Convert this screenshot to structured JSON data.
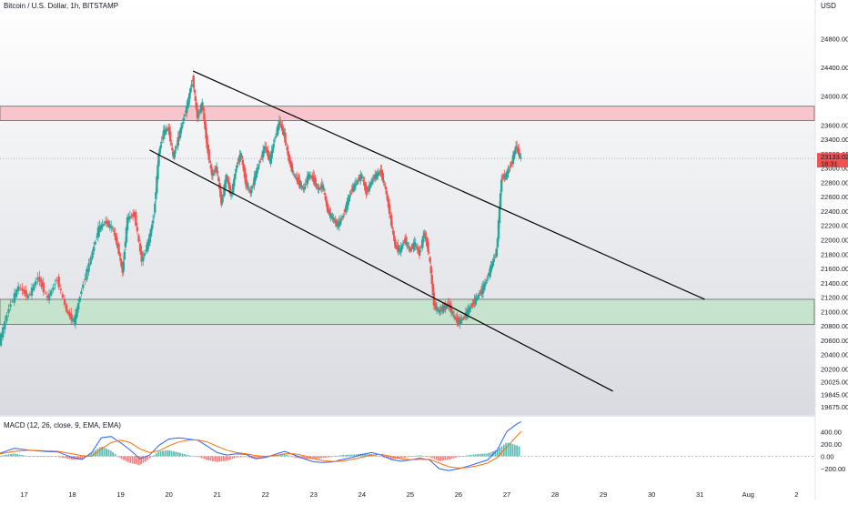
{
  "header": {
    "symbol_label": "Bitcoin / U.S. Dollar, 1h, BITSTAMP",
    "currency_label": "USD"
  },
  "chart_data": {
    "type": "candlestick",
    "title": "Bitcoin / U.S. Dollar, 1h, BITSTAMP",
    "y_axis_label": "USD",
    "ylim": [
      19560,
      25340
    ],
    "price_ticks": [
      "24800.00",
      "24400.00",
      "24000.00",
      "23600.00",
      "23400.00",
      "23200.00",
      "23000.00",
      "22800.00",
      "22600.00",
      "22400.00",
      "22200.00",
      "22000.00",
      "21800.00",
      "21600.00",
      "21400.00",
      "21200.00",
      "21000.00",
      "20800.00",
      "20600.00",
      "20400.00",
      "20200.00",
      "20025.00",
      "19845.00",
      "19675.00"
    ],
    "price_tick_values": [
      24800,
      24400,
      24000,
      23600,
      23400,
      23200,
      23000,
      22800,
      22600,
      22400,
      22200,
      22000,
      21800,
      21600,
      21400,
      21200,
      21000,
      20800,
      20600,
      20400,
      20200,
      20025,
      19845,
      19675
    ],
    "x_ticks": [
      "17",
      "18",
      "19",
      "20",
      "21",
      "22",
      "23",
      "24",
      "25",
      "26",
      "27",
      "28",
      "29",
      "30",
      "31",
      "Aug",
      "2"
    ],
    "last_price_label": "23133.02",
    "countdown_label": "18:31",
    "last_price": 23133,
    "zones": [
      {
        "name": "resistance",
        "from": 23660,
        "to": 23860,
        "color": "#f7c5cb"
      },
      {
        "name": "support",
        "from": 20820,
        "to": 21170,
        "color": "#c5e3cd"
      }
    ],
    "trendlines": [
      {
        "name": "channel-upper",
        "p1": [
          20.5,
          24350
        ],
        "p2": [
          31.1,
          21170
        ]
      },
      {
        "name": "channel-lower",
        "p1": [
          19.6,
          23250
        ],
        "p2": [
          29.2,
          19890
        ]
      }
    ],
    "price_path": [
      [
        16.5,
        20570
      ],
      [
        16.7,
        21050
      ],
      [
        16.9,
        21350
      ],
      [
        17.1,
        21200
      ],
      [
        17.3,
        21480
      ],
      [
        17.5,
        21180
      ],
      [
        17.7,
        21450
      ],
      [
        17.9,
        21000
      ],
      [
        18.05,
        20850
      ],
      [
        18.2,
        21300
      ],
      [
        18.4,
        21750
      ],
      [
        18.55,
        22150
      ],
      [
        18.7,
        22250
      ],
      [
        18.85,
        22150
      ],
      [
        18.95,
        21900
      ],
      [
        19.05,
        21550
      ],
      [
        19.15,
        22300
      ],
      [
        19.3,
        22350
      ],
      [
        19.45,
        21700
      ],
      [
        19.6,
        22000
      ],
      [
        19.7,
        22350
      ],
      [
        19.8,
        23200
      ],
      [
        19.9,
        23500
      ],
      [
        20.0,
        23550
      ],
      [
        20.1,
        23150
      ],
      [
        20.2,
        23400
      ],
      [
        20.3,
        23650
      ],
      [
        20.4,
        23900
      ],
      [
        20.5,
        24250
      ],
      [
        20.6,
        23700
      ],
      [
        20.7,
        23900
      ],
      [
        20.8,
        23300
      ],
      [
        20.9,
        22900
      ],
      [
        21.0,
        23000
      ],
      [
        21.1,
        22500
      ],
      [
        21.2,
        22900
      ],
      [
        21.3,
        22600
      ],
      [
        21.4,
        23000
      ],
      [
        21.5,
        23200
      ],
      [
        21.6,
        22800
      ],
      [
        21.7,
        22650
      ],
      [
        21.8,
        22900
      ],
      [
        21.9,
        23100
      ],
      [
        22.0,
        23300
      ],
      [
        22.1,
        23100
      ],
      [
        22.2,
        23400
      ],
      [
        22.3,
        23650
      ],
      [
        22.4,
        23450
      ],
      [
        22.5,
        23100
      ],
      [
        22.6,
        22900
      ],
      [
        22.7,
        22800
      ],
      [
        22.8,
        22700
      ],
      [
        22.9,
        22900
      ],
      [
        23.0,
        22850
      ],
      [
        23.1,
        22700
      ],
      [
        23.2,
        22750
      ],
      [
        23.3,
        22400
      ],
      [
        23.4,
        22300
      ],
      [
        23.5,
        22200
      ],
      [
        23.6,
        22300
      ],
      [
        23.7,
        22500
      ],
      [
        23.8,
        22700
      ],
      [
        23.9,
        22800
      ],
      [
        24.0,
        22900
      ],
      [
        24.1,
        22650
      ],
      [
        24.2,
        22800
      ],
      [
        24.3,
        22900
      ],
      [
        24.4,
        22950
      ],
      [
        24.5,
        22700
      ],
      [
        24.6,
        22300
      ],
      [
        24.7,
        21900
      ],
      [
        24.8,
        21850
      ],
      [
        24.9,
        22000
      ],
      [
        25.0,
        21850
      ],
      [
        25.1,
        21950
      ],
      [
        25.2,
        21800
      ],
      [
        25.3,
        22100
      ],
      [
        25.4,
        21800
      ],
      [
        25.5,
        21100
      ],
      [
        25.6,
        21000
      ],
      [
        25.7,
        21050
      ],
      [
        25.8,
        21100
      ],
      [
        25.9,
        20950
      ],
      [
        26.0,
        20850
      ],
      [
        26.1,
        20900
      ],
      [
        26.2,
        21000
      ],
      [
        26.3,
        21100
      ],
      [
        26.4,
        21200
      ],
      [
        26.5,
        21300
      ],
      [
        26.6,
        21450
      ],
      [
        26.7,
        21650
      ],
      [
        26.8,
        21850
      ],
      [
        26.9,
        22850
      ],
      [
        27.0,
        22900
      ],
      [
        27.1,
        23050
      ],
      [
        27.2,
        23300
      ],
      [
        27.3,
        23133
      ]
    ],
    "macd_title": "MACD (12, 26, close, 9, EMA, EMA)",
    "macd_ylim": [
      -420,
      640
    ],
    "macd_ticks": [
      "400.00",
      "200.00",
      "0.00",
      "−200.00"
    ],
    "macd_tick_values": [
      400,
      200,
      0,
      -200
    ],
    "macd_path": [
      [
        16.5,
        50
      ],
      [
        16.8,
        130
      ],
      [
        17.1,
        100
      ],
      [
        17.4,
        80
      ],
      [
        17.7,
        70
      ],
      [
        18.0,
        -20
      ],
      [
        18.2,
        -50
      ],
      [
        18.4,
        60
      ],
      [
        18.6,
        300
      ],
      [
        18.8,
        320
      ],
      [
        19.0,
        220
      ],
      [
        19.2,
        100
      ],
      [
        19.4,
        -40
      ],
      [
        19.6,
        20
      ],
      [
        19.8,
        180
      ],
      [
        20.0,
        280
      ],
      [
        20.2,
        300
      ],
      [
        20.4,
        280
      ],
      [
        20.6,
        260
      ],
      [
        20.8,
        160
      ],
      [
        21.0,
        60
      ],
      [
        21.2,
        20
      ],
      [
        21.4,
        40
      ],
      [
        21.6,
        30
      ],
      [
        21.8,
        -40
      ],
      [
        22.0,
        -20
      ],
      [
        22.2,
        30
      ],
      [
        22.4,
        80
      ],
      [
        22.6,
        20
      ],
      [
        22.8,
        -40
      ],
      [
        23.0,
        -90
      ],
      [
        23.2,
        -100
      ],
      [
        23.4,
        -90
      ],
      [
        23.6,
        -50
      ],
      [
        23.8,
        -20
      ],
      [
        24.0,
        30
      ],
      [
        24.2,
        60
      ],
      [
        24.4,
        20
      ],
      [
        24.6,
        -50
      ],
      [
        24.8,
        -80
      ],
      [
        25.0,
        -60
      ],
      [
        25.2,
        -30
      ],
      [
        25.4,
        -60
      ],
      [
        25.6,
        -200
      ],
      [
        25.8,
        -230
      ],
      [
        26.0,
        -200
      ],
      [
        26.2,
        -160
      ],
      [
        26.4,
        -110
      ],
      [
        26.6,
        -60
      ],
      [
        26.8,
        100
      ],
      [
        27.0,
        400
      ],
      [
        27.2,
        520
      ],
      [
        27.3,
        560
      ]
    ],
    "signal_path": [
      [
        16.5,
        40
      ],
      [
        16.8,
        80
      ],
      [
        17.1,
        100
      ],
      [
        17.4,
        90
      ],
      [
        17.7,
        80
      ],
      [
        18.0,
        40
      ],
      [
        18.2,
        10
      ],
      [
        18.4,
        0
      ],
      [
        18.6,
        120
      ],
      [
        18.8,
        220
      ],
      [
        19.0,
        260
      ],
      [
        19.2,
        220
      ],
      [
        19.4,
        120
      ],
      [
        19.6,
        60
      ],
      [
        19.8,
        90
      ],
      [
        20.0,
        170
      ],
      [
        20.2,
        230
      ],
      [
        20.4,
        260
      ],
      [
        20.6,
        265
      ],
      [
        20.8,
        230
      ],
      [
        21.0,
        160
      ],
      [
        21.2,
        100
      ],
      [
        21.4,
        60
      ],
      [
        21.6,
        40
      ],
      [
        21.8,
        10
      ],
      [
        22.0,
        0
      ],
      [
        22.2,
        10
      ],
      [
        22.4,
        40
      ],
      [
        22.6,
        40
      ],
      [
        22.8,
        10
      ],
      [
        23.0,
        -40
      ],
      [
        23.2,
        -70
      ],
      [
        23.4,
        -85
      ],
      [
        23.6,
        -75
      ],
      [
        23.8,
        -50
      ],
      [
        24.0,
        -15
      ],
      [
        24.2,
        20
      ],
      [
        24.4,
        30
      ],
      [
        24.6,
        0
      ],
      [
        24.8,
        -40
      ],
      [
        25.0,
        -55
      ],
      [
        25.2,
        -50
      ],
      [
        25.4,
        -50
      ],
      [
        25.6,
        -110
      ],
      [
        25.8,
        -170
      ],
      [
        26.0,
        -190
      ],
      [
        26.2,
        -180
      ],
      [
        26.4,
        -150
      ],
      [
        26.6,
        -110
      ],
      [
        26.8,
        -20
      ],
      [
        27.0,
        150
      ],
      [
        27.2,
        320
      ],
      [
        27.3,
        400
      ]
    ],
    "colors": {
      "up": "#26a69a",
      "down": "#ef5350",
      "macd_line": "#2962ff",
      "signal_line": "#ff6d00",
      "trendline": "#000000"
    }
  }
}
